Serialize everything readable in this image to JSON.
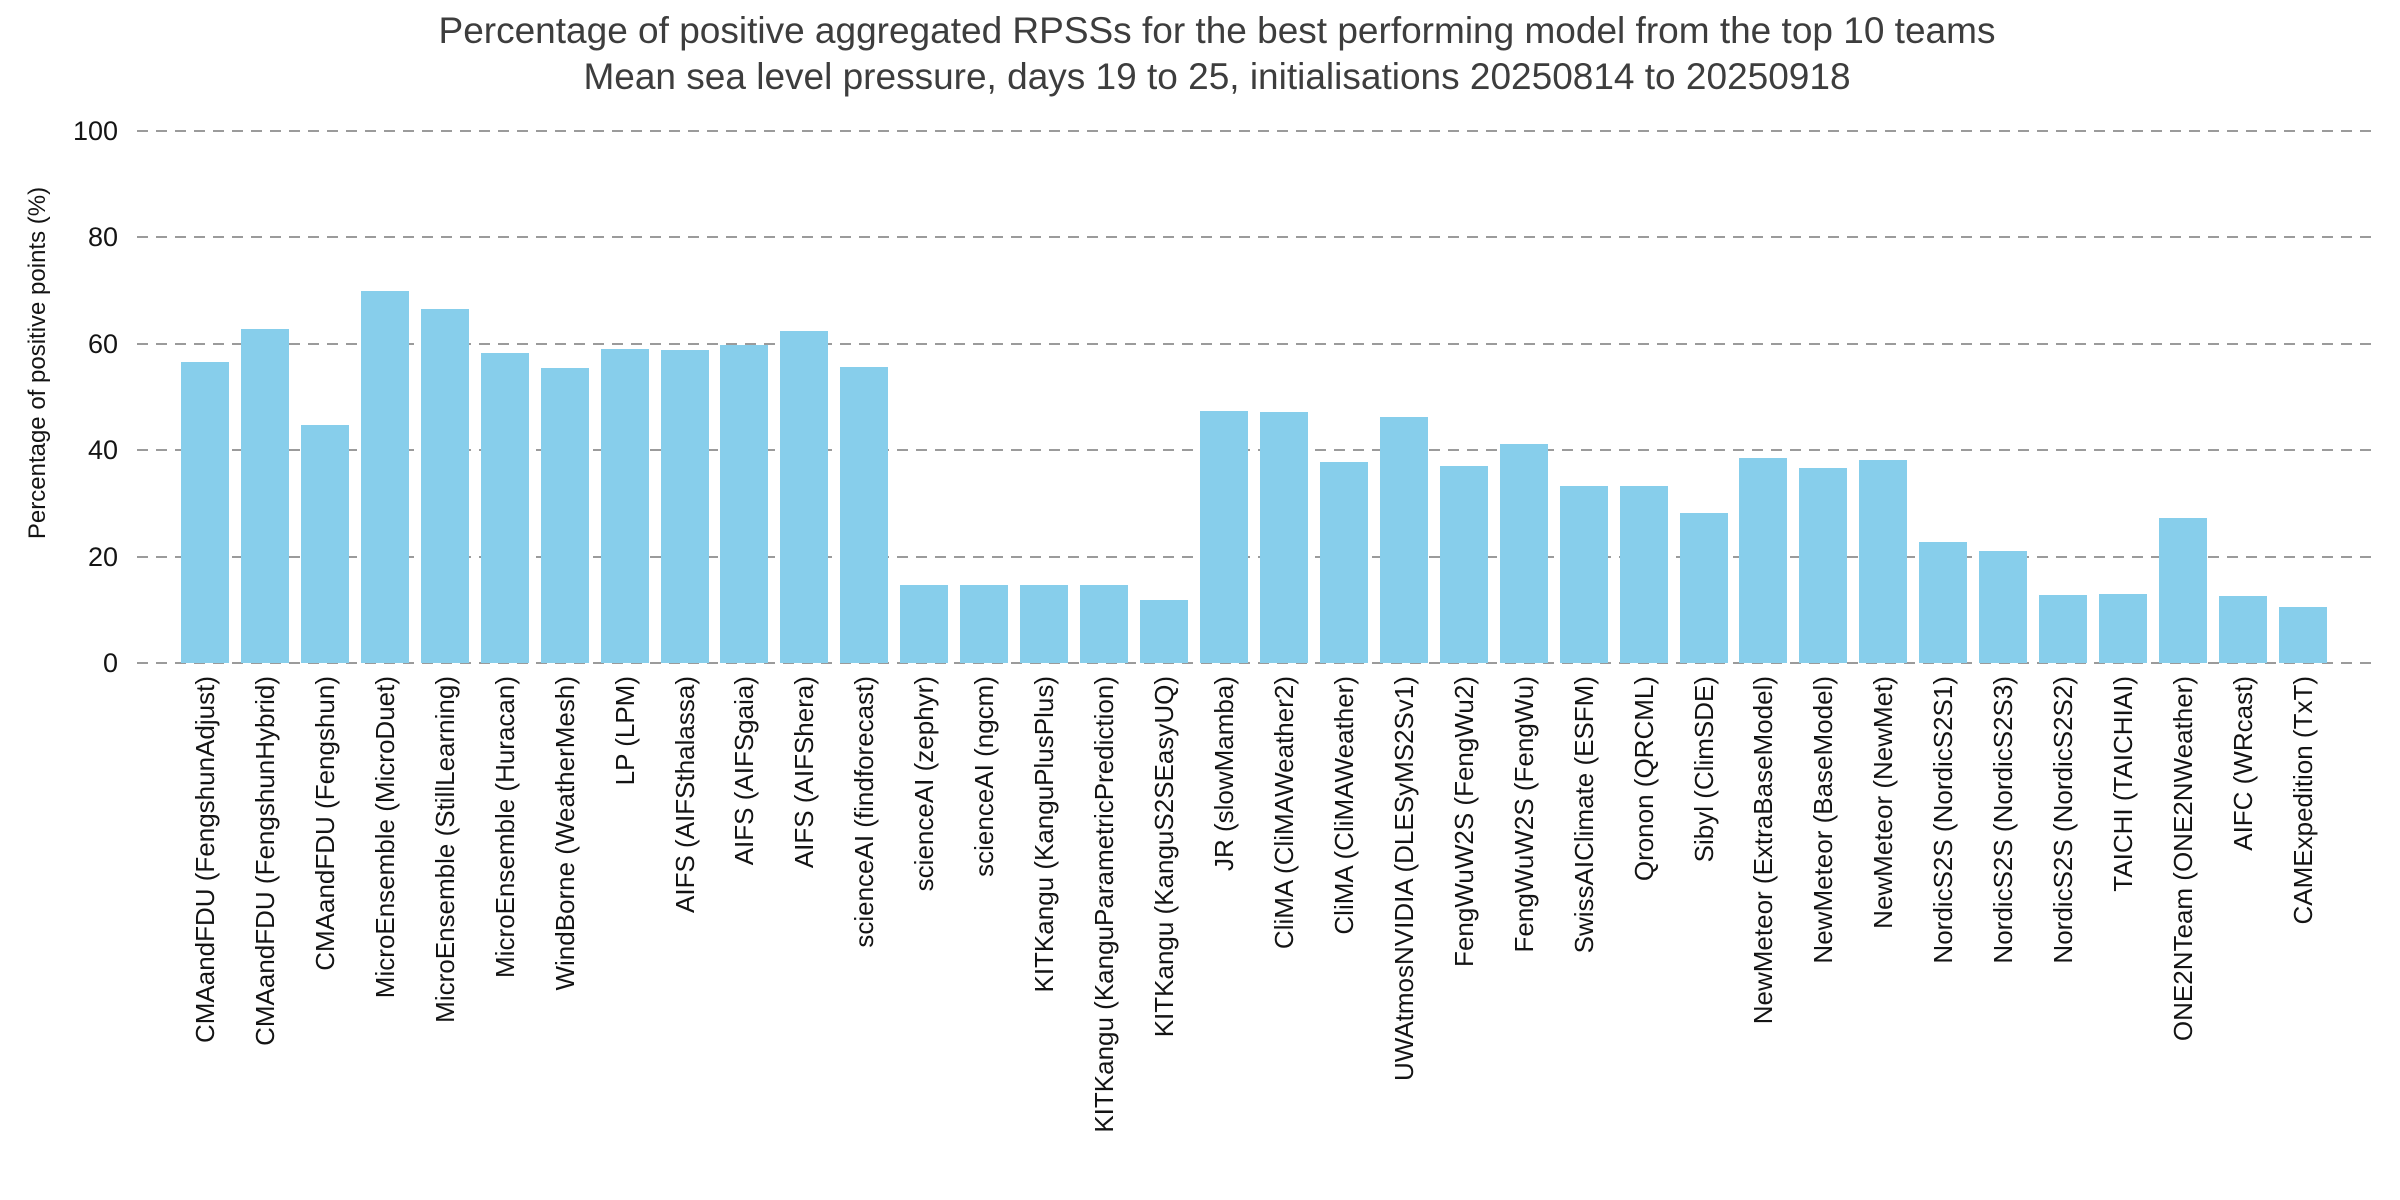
{
  "chart_data": {
    "type": "bar",
    "title": "Percentage of positive aggregated RPSSs for the best performing model from the top 10 teams",
    "subtitle": "Mean sea level pressure, days 19 to 25, initialisations 20250814 to 20250918",
    "xlabel": "",
    "ylabel": "Percentage of positive points (%)",
    "ylim": [
      0,
      100
    ],
    "yticks": [
      0,
      20,
      40,
      60,
      80,
      100
    ],
    "grid": "horizontal dashed gridlines, no axis spines",
    "legend": "none",
    "bar_color": "#87CEEB",
    "gridline_color": "#9b9b9b",
    "background_color": "#ffffff",
    "title_color": "#3d3d3d",
    "tick_label_color": "#141414",
    "x_tick_rotation_degrees": 90,
    "categories": [
      "CMAandFDU (FengshunAdjust)",
      "CMAandFDU (FengshunHybrid)",
      "CMAandFDU (Fengshun)",
      "MicroEnsemble (MicroDuet)",
      "MicroEnsemble (StillLearning)",
      "MicroEnsemble (Huracan)",
      "WindBorne (WeatherMesh)",
      "LP (LPM)",
      "AIFS (AIFSthalassa)",
      "AIFS (AIFSgaia)",
      "AIFS (AIFShera)",
      "scienceAI (findforecast)",
      "scienceAI (zephyr)",
      "scienceAI (ngcm)",
      "KITKangu (KanguPlusPlus)",
      "KITKangu (KanguParametricPrediction)",
      "KITKangu (KanguS2SEasyUQ)",
      "JR (slowMamba)",
      "CliMA (CliMAWeather2)",
      "CliMA (CliMAWeather)",
      "UWAtmosNVIDIA (DLESyMS2Sv1)",
      "FengWuW2S (FengWu2)",
      "FengWuW2S (FengWu)",
      "SwissAIClimate (ESFM)",
      "Qronon (QRCML)",
      "Sibyl (ClimSDE)",
      "NewMeteor (ExtraBaseModel)",
      "NewMeteor (BaseModel)",
      "NewMeteor (NewMet)",
      "NordicS2S (NordicS2S1)",
      "NordicS2S (NordicS2S3)",
      "NordicS2S (NordicS2S2)",
      "TAICHI (TAICHIAI)",
      "ONE2NTeam (ONE2NWeather)",
      "AIFC (WRcast)",
      "CAMExpedition (TxT)"
    ],
    "values": [
      56.6,
      62.8,
      44.8,
      69.9,
      66.5,
      58.2,
      55.4,
      59.1,
      58.8,
      59.7,
      62.4,
      55.6,
      14.6,
      14.6,
      14.6,
      14.6,
      11.8,
      47.4,
      47.1,
      37.8,
      46.3,
      37.0,
      41.2,
      33.2,
      33.2,
      28.2,
      38.6,
      36.6,
      38.2,
      22.7,
      21.1,
      12.7,
      13.0,
      27.2,
      12.6,
      10.6
    ]
  }
}
